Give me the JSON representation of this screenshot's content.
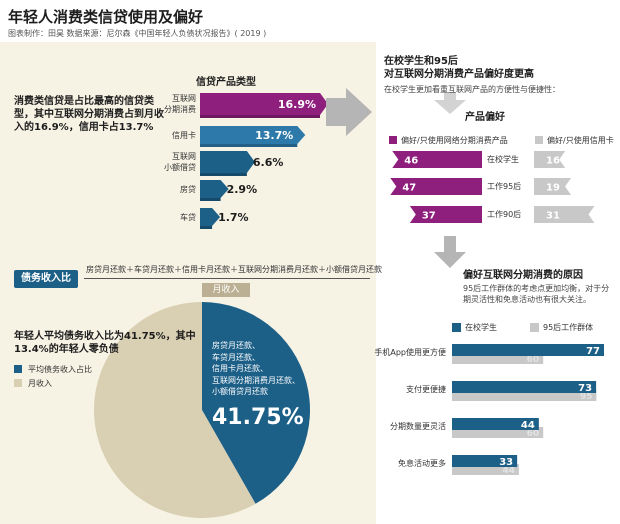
{
  "header": {
    "title": "年轻人消费类信贷使用及偏好",
    "source": "图表制作：田昊  数据来源：尼尔森《中国年轻人负债状况报告》( 2019 )"
  },
  "credit": {
    "text": "消费类信贷是占比最高的信贷类型，其中互联网分期消费占到月收入的16.9%，信用卡占13.7%",
    "heading": "信贷产品类型"
  },
  "debt": {
    "label": "债务收入比",
    "numerator": "房贷月还款＋车贷月还款＋信用卡月还款＋互联网分期消费月还款＋小额借贷月还款",
    "denominator": "月收入",
    "text": "年轻人平均债务收入比为41.75%，其中13.4%的年轻人零负债",
    "legend_ratio": "平均债务收入占比",
    "legend_income": "月收入",
    "pie_lines": [
      "房贷月还款、",
      "车贷月还款、",
      "信用卡月还款、",
      "互联网分期消费月还款、",
      "小额借贷月还款"
    ],
    "pie_value": "41.75%"
  },
  "preference": {
    "title_line1": "在校学生和95后",
    "title_line2": "对互联网分期消费产品偏好度更高",
    "subtitle": "在校学生更加看重互联网产品的方便性与便捷性：",
    "heading": "产品偏好",
    "legend_internet": "偏好/只使用网络分期消费产品",
    "legend_card": "偏好/只使用信用卡"
  },
  "reasons": {
    "heading": "偏好互联网分期消费的原因",
    "subtitle": "95后工作群体的考虑点更加均衡，对于分期灵活性和免息活动也有很大关注。",
    "legend_student": "在校学生",
    "legend_worker": "95后工作群体"
  },
  "colors": {
    "purple": "#8e1f7c",
    "blue": "#1c5f87",
    "light_grey": "#c8c8c8",
    "beige": "#d9cfb2"
  },
  "chart_data": [
    {
      "type": "bar",
      "orientation": "horizontal",
      "title": "信贷产品类型",
      "categories": [
        "互联网分期消费",
        "信用卡",
        "互联网小额借贷",
        "房贷",
        "车贷"
      ],
      "category_lines": [
        [
          "互联网",
          "分期消费"
        ],
        [
          "信用卡"
        ],
        [
          "互联网",
          "小额借贷"
        ],
        [
          "房贷"
        ],
        [
          "车贷"
        ]
      ],
      "values": [
        16.9,
        13.7,
        6.6,
        2.9,
        1.7
      ],
      "labels": [
        "16.9%",
        "13.7%",
        "6.6%",
        "2.9%",
        "1.7%"
      ],
      "unit": "%"
    },
    {
      "type": "pie",
      "title": "债务收入比",
      "slices": [
        {
          "name": "平均债务收入占比",
          "value": 41.75,
          "color": "#1c5f87"
        },
        {
          "name": "月收入",
          "value": 58.25,
          "color": "#d9cfb2"
        }
      ]
    },
    {
      "type": "bar",
      "orientation": "horizontal",
      "layout": "diverging",
      "title": "产品偏好",
      "categories": [
        "在校学生",
        "工作95后",
        "工作90后"
      ],
      "series": [
        {
          "name": "偏好/只使用网络分期消费产品",
          "values": [
            46,
            47,
            37
          ],
          "color": "#8e1f7c"
        },
        {
          "name": "偏好/只使用信用卡",
          "values": [
            16,
            19,
            31
          ],
          "color": "#c8c8c8"
        }
      ]
    },
    {
      "type": "bar",
      "orientation": "horizontal",
      "title": "偏好互联网分期消费的原因",
      "categories": [
        "手机App使用更方便",
        "支付更便捷",
        "分期数量更灵活",
        "免息活动更多"
      ],
      "series": [
        {
          "name": "在校学生",
          "values": [
            77,
            73,
            44,
            33
          ],
          "color": "#1c5f87"
        },
        {
          "name": "95后工作群体",
          "values": [
            60,
            95,
            60,
            44
          ],
          "color": "#c8c8c8"
        }
      ]
    }
  ]
}
